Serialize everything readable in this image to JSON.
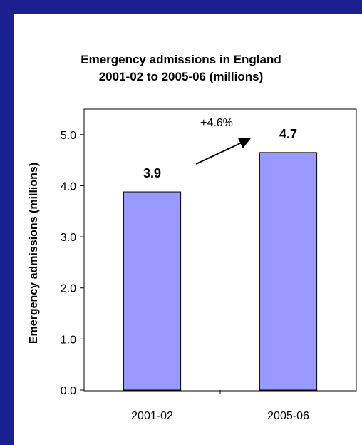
{
  "chart_data": {
    "type": "bar",
    "title_line1": "Emergency admissions in England",
    "title_line2": "2001-02 to 2005-06 (millions)",
    "xlabel": "",
    "ylabel": "Emergency admissions (millions)",
    "categories": [
      "2001-02",
      "2005-06"
    ],
    "values": [
      3.88,
      4.65
    ],
    "data_labels": [
      "3.9",
      "4.7"
    ],
    "ylim": [
      0,
      5.5
    ],
    "yticks": [
      "0.0",
      "1.0",
      "2.0",
      "3.0",
      "4.0",
      "5.0"
    ],
    "annotation": "+4.6%",
    "colors": {
      "bar": "#9999ff",
      "background": "#1b1f8f",
      "panel": "#ffffff"
    },
    "grid": false
  }
}
